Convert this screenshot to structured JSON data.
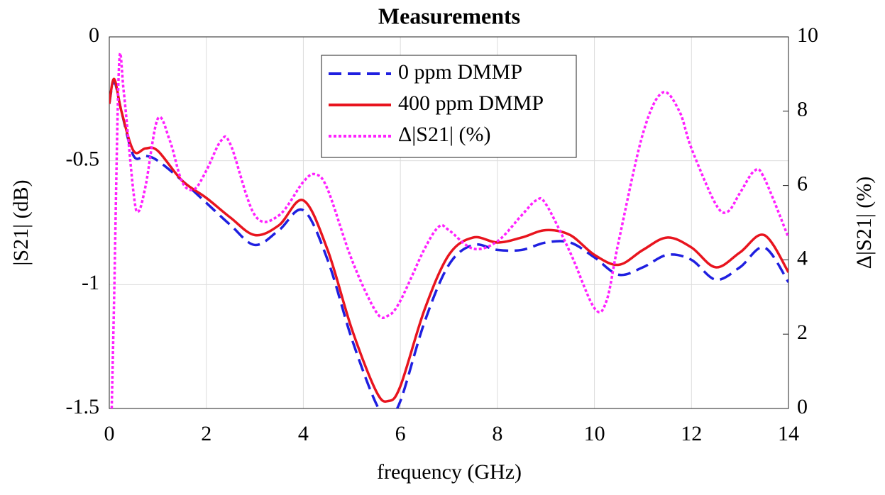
{
  "chart_data": {
    "type": "line",
    "title": "Measurements",
    "x_label": "frequency (GHz)",
    "y_label": "|S21| (dB)",
    "y2_label": "Δ|S21| (%)",
    "xlim": [
      0,
      14
    ],
    "xticks": [
      0,
      2,
      4,
      6,
      8,
      10,
      12,
      14
    ],
    "ylim": [
      -1.5,
      0
    ],
    "yticks": [
      -1.5,
      -1,
      -0.5,
      0
    ],
    "y2lim": [
      0,
      10
    ],
    "y2ticks": [
      0,
      2,
      4,
      6,
      8,
      10
    ],
    "grid": true,
    "legend": "top-center",
    "series": [
      {
        "name": "0 ppm DMMP",
        "color": "#1f1fe0",
        "dash": "dashed",
        "x": [
          0,
          0.1,
          0.25,
          0.5,
          0.75,
          1,
          1.5,
          2,
          2.5,
          3,
          3.5,
          4,
          4.5,
          5,
          5.5,
          5.75,
          6,
          6.5,
          7,
          7.5,
          8,
          8.5,
          9,
          9.5,
          10,
          10.5,
          11,
          11.5,
          12,
          12.5,
          13,
          13.5,
          14
        ],
        "values": [
          -0.27,
          -0.18,
          -0.3,
          -0.48,
          -0.48,
          -0.5,
          -0.58,
          -0.67,
          -0.76,
          -0.84,
          -0.78,
          -0.7,
          -0.9,
          -1.22,
          -1.48,
          -1.53,
          -1.47,
          -1.15,
          -0.92,
          -0.84,
          -0.86,
          -0.86,
          -0.83,
          -0.83,
          -0.89,
          -0.96,
          -0.93,
          -0.88,
          -0.9,
          -0.98,
          -0.93,
          -0.85,
          -0.99
        ]
      },
      {
        "name": "400 ppm DMMP",
        "color": "#e8141e",
        "dash": "solid",
        "x": [
          0,
          0.1,
          0.25,
          0.5,
          0.75,
          1,
          1.5,
          2,
          2.5,
          3,
          3.5,
          4,
          4.5,
          5,
          5.5,
          5.75,
          6,
          6.5,
          7,
          7.5,
          8,
          8.5,
          9,
          9.5,
          10,
          10.5,
          11,
          11.5,
          12,
          12.5,
          13,
          13.5,
          14
        ],
        "values": [
          -0.27,
          -0.17,
          -0.3,
          -0.46,
          -0.45,
          -0.46,
          -0.58,
          -0.65,
          -0.73,
          -0.8,
          -0.76,
          -0.66,
          -0.86,
          -1.18,
          -1.43,
          -1.47,
          -1.41,
          -1.1,
          -0.88,
          -0.81,
          -0.83,
          -0.81,
          -0.78,
          -0.8,
          -0.88,
          -0.92,
          -0.86,
          -0.81,
          -0.85,
          -0.93,
          -0.87,
          -0.8,
          -0.95
        ]
      },
      {
        "name": "Δ|S21| (%)",
        "color": "#ff20ff",
        "dash": "dotted",
        "axis": "y2",
        "x": [
          0.05,
          0.1,
          0.2,
          0.3,
          0.5,
          0.6,
          0.75,
          1,
          1.25,
          1.5,
          1.75,
          2,
          2.3,
          2.5,
          3,
          3.5,
          4,
          4.25,
          4.5,
          5,
          5.5,
          5.75,
          6,
          6.5,
          6.8,
          7,
          7.5,
          8,
          8.5,
          8.8,
          9,
          9.5,
          10,
          10.25,
          10.5,
          11,
          11.4,
          11.75,
          12,
          12.5,
          12.75,
          13,
          13.3,
          13.5,
          14
        ],
        "values": [
          0,
          3,
          9.2,
          8.5,
          5.8,
          5.3,
          6,
          7.8,
          7.2,
          6.1,
          5.9,
          6.4,
          7.2,
          7.1,
          5.2,
          5.2,
          6.1,
          6.3,
          5.9,
          4,
          2.6,
          2.5,
          2.9,
          4.3,
          4.9,
          4.8,
          4.3,
          4.5,
          5.2,
          5.6,
          5.5,
          4.2,
          2.7,
          2.9,
          4.5,
          7.4,
          8.5,
          8,
          7,
          5.5,
          5.3,
          5.8,
          6.4,
          6.2,
          4.6
        ]
      }
    ]
  }
}
